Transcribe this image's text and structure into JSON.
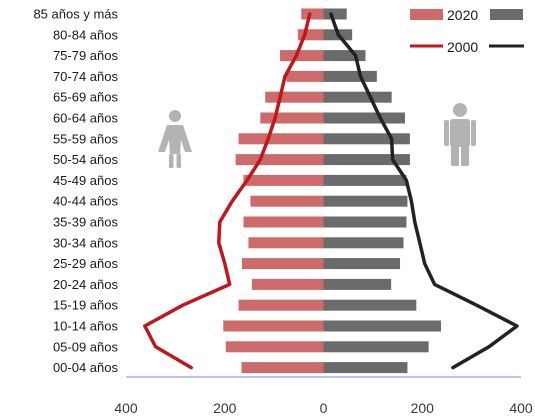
{
  "chart_data": {
    "type": "bar",
    "orientation": "horizontal-population-pyramid",
    "categories": [
      "85 años y más",
      "80-84 años",
      "75-79 años",
      "70-74 años",
      "65-69 años",
      "60-64 años",
      "55-59 años",
      "50-54 años",
      "45-49 años",
      "40-44 años",
      "35-39 años",
      "30-34 años",
      "25-29 años",
      "20-24 años",
      "15-19 años",
      "10-14 años",
      "05-09 años",
      "00-04 años"
    ],
    "series": [
      {
        "name": "2020",
        "side": "male",
        "color": "#cd6a6b",
        "kind": "bar",
        "values": [
          -45,
          -52,
          -88,
          -75,
          -118,
          -128,
          -172,
          -178,
          -162,
          -148,
          -162,
          -152,
          -165,
          -145,
          -172,
          -203,
          -198,
          -166
        ]
      },
      {
        "name": "2020",
        "side": "female",
        "color": "#6b6b6b",
        "kind": "bar",
        "values": [
          47,
          58,
          85,
          108,
          138,
          165,
          175,
          175,
          168,
          170,
          168,
          162,
          155,
          137,
          188,
          238,
          213,
          170
        ]
      },
      {
        "name": "2000",
        "side": "male",
        "color": "#c0161c",
        "kind": "line",
        "values": [
          -28,
          -38,
          -55,
          -78,
          -88,
          -98,
          -112,
          -128,
          -155,
          -185,
          -210,
          -212,
          -200,
          -190,
          -285,
          -362,
          -340,
          -268
        ]
      },
      {
        "name": "2000",
        "side": "female",
        "color": "#222222",
        "kind": "line",
        "values": [
          15,
          30,
          65,
          75,
          95,
          115,
          138,
          140,
          168,
          178,
          185,
          195,
          205,
          225,
          310,
          392,
          335,
          262
        ]
      }
    ],
    "xlim": [
      -400,
      400
    ],
    "xticks": [
      "400",
      "200",
      "0",
      "200",
      "400"
    ],
    "xtick_values": [
      -400,
      -200,
      0,
      200,
      400
    ],
    "legend": [
      {
        "label": "2020",
        "style": "bar"
      },
      {
        "label": "2000",
        "style": "line"
      }
    ],
    "legend_position": "top-right",
    "icons": [
      "female-figure-icon",
      "male-figure-icon"
    ]
  }
}
